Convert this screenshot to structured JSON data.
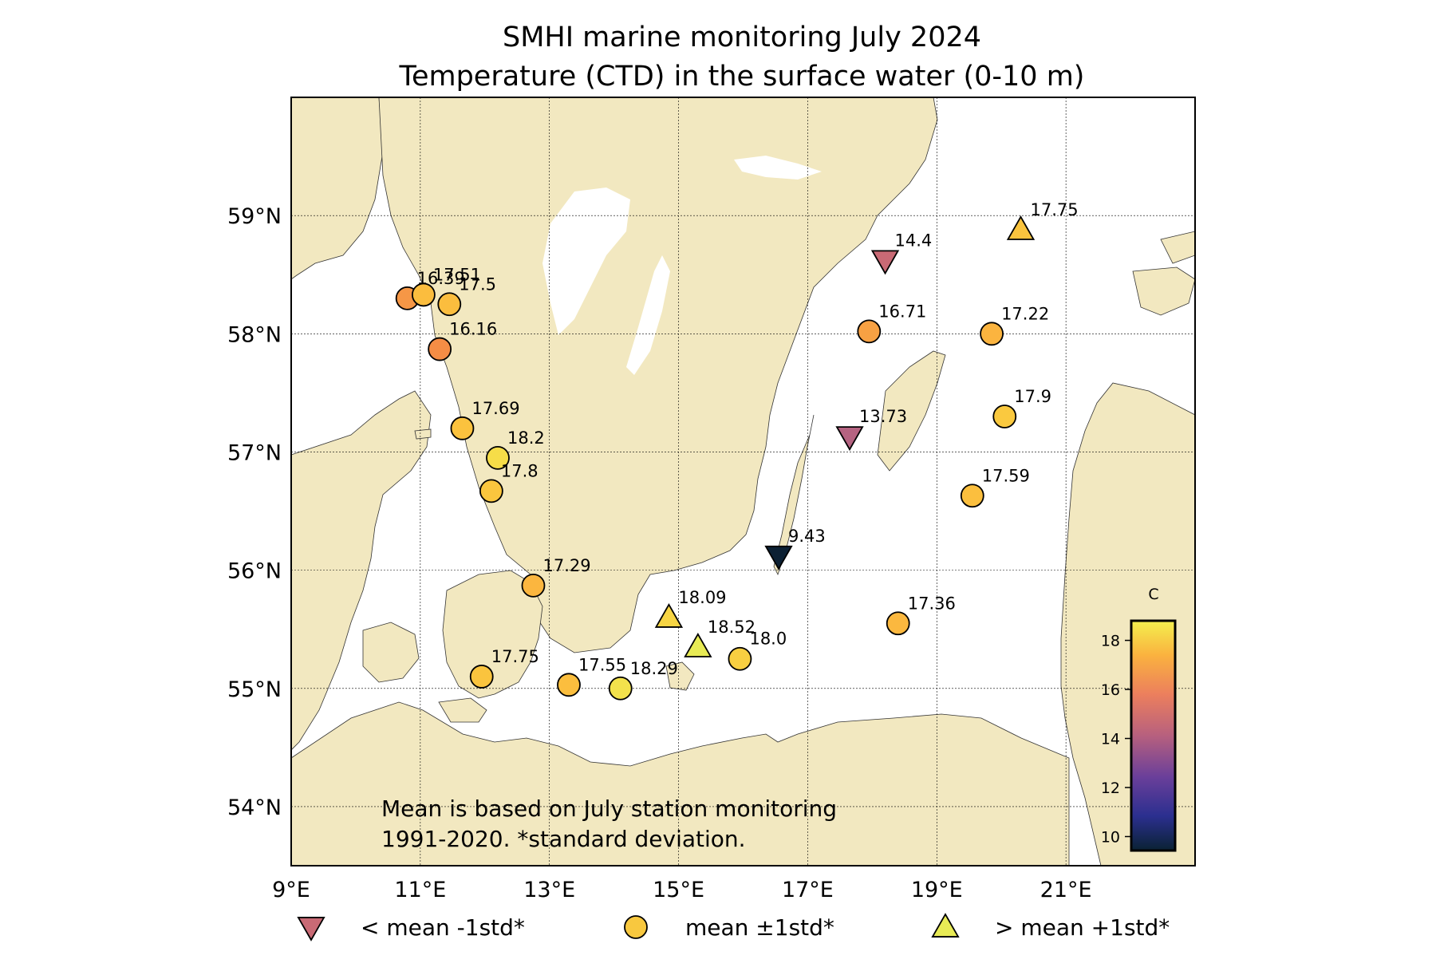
{
  "title": {
    "line1": "SMHI marine monitoring July 2024",
    "line2": "Temperature (CTD) in the surface water (0-10 m)"
  },
  "map": {
    "lon_range": [
      9,
      23
    ],
    "lat_range": [
      53.5,
      60
    ],
    "lon_ticks": [
      9,
      11,
      13,
      15,
      17,
      19,
      21
    ],
    "lat_ticks": [
      54,
      55,
      56,
      57,
      58,
      59
    ],
    "lon_tick_labels": [
      "9°E",
      "11°E",
      "13°E",
      "15°E",
      "17°E",
      "19°E",
      "21°E"
    ],
    "lat_tick_labels": [
      "54°N",
      "55°N",
      "56°N",
      "57°N",
      "58°N",
      "59°N"
    ],
    "land_color": "#f2e8c0",
    "sea_color": "#ffffff"
  },
  "stations": [
    {
      "value": 16.39,
      "label": "16.39",
      "category": "mean",
      "lon": 10.8,
      "lat": 58.3,
      "color": "#f69746"
    },
    {
      "value": 17.51,
      "label": "17.51",
      "category": "mean",
      "lon": 11.05,
      "lat": 58.33,
      "color": "#fbbd3e"
    },
    {
      "value": 17.5,
      "label": "17.5",
      "category": "mean",
      "lon": 11.45,
      "lat": 58.25,
      "color": "#fbbd3e"
    },
    {
      "value": 16.16,
      "label": "16.16",
      "category": "mean",
      "lon": 11.3,
      "lat": 57.87,
      "color": "#f58d45"
    },
    {
      "value": 17.69,
      "label": "17.69",
      "category": "mean",
      "lon": 11.65,
      "lat": 57.2,
      "color": "#fbc23e"
    },
    {
      "value": 18.2,
      "label": "18.2",
      "category": "mean",
      "lon": 12.2,
      "lat": 56.95,
      "color": "#f6dd48"
    },
    {
      "value": 17.8,
      "label": "17.8",
      "category": "mean",
      "lon": 12.1,
      "lat": 56.67,
      "color": "#fac63e"
    },
    {
      "value": 17.29,
      "label": "17.29",
      "category": "mean",
      "lon": 12.75,
      "lat": 55.87,
      "color": "#fbb63f"
    },
    {
      "value": 17.75,
      "label": "17.75",
      "category": "mean",
      "lon": 11.95,
      "lat": 55.1,
      "color": "#fac43e"
    },
    {
      "value": 17.55,
      "label": "17.55",
      "category": "mean",
      "lon": 13.3,
      "lat": 55.03,
      "color": "#fbbe3e"
    },
    {
      "value": 18.29,
      "label": "18.29",
      "category": "mean",
      "lon": 14.1,
      "lat": 55.0,
      "color": "#f3e24c"
    },
    {
      "value": 18.09,
      "label": "18.09",
      "category": "above",
      "lon": 14.85,
      "lat": 55.6,
      "color": "#f7d544"
    },
    {
      "value": 18.52,
      "label": "18.52",
      "category": "above",
      "lon": 15.3,
      "lat": 55.35,
      "color": "#e8eb55"
    },
    {
      "value": 18.0,
      "label": "18.0",
      "category": "mean",
      "lon": 15.95,
      "lat": 55.25,
      "color": "#f8cf41"
    },
    {
      "value": 9.43,
      "label": "9.43",
      "category": "below",
      "lon": 16.55,
      "lat": 56.12,
      "color": "#0c2033"
    },
    {
      "value": 13.73,
      "label": "13.73",
      "category": "below",
      "lon": 17.65,
      "lat": 57.13,
      "color": "#b56381"
    },
    {
      "value": 14.4,
      "label": "14.4",
      "category": "below",
      "lon": 18.2,
      "lat": 58.62,
      "color": "#c96a75"
    },
    {
      "value": 16.71,
      "label": "16.71",
      "category": "mean",
      "lon": 17.95,
      "lat": 58.02,
      "color": "#f7a143"
    },
    {
      "value": 17.22,
      "label": "17.22",
      "category": "mean",
      "lon": 19.85,
      "lat": 58.0,
      "color": "#fbb43f"
    },
    {
      "value": 17.75,
      "label": "17.75",
      "category": "above",
      "lon": 20.3,
      "lat": 58.88,
      "color": "#fac43e"
    },
    {
      "value": 17.9,
      "label": "17.9",
      "category": "mean",
      "lon": 20.05,
      "lat": 57.3,
      "color": "#fac93f"
    },
    {
      "value": 17.59,
      "label": "17.59",
      "category": "mean",
      "lon": 19.55,
      "lat": 56.63,
      "color": "#fbbf3e"
    },
    {
      "value": 17.36,
      "label": "17.36",
      "category": "mean",
      "lon": 18.4,
      "lat": 55.55,
      "color": "#fbb83f"
    }
  ],
  "note": {
    "line1": "Mean is based on July station monitoring",
    "line2": "1991-2020. *standard deviation."
  },
  "colorbar": {
    "title": "C",
    "min": 9.43,
    "max": 18.8,
    "ticks": [
      10,
      12,
      14,
      16,
      18
    ],
    "tick_labels": [
      "10",
      "12",
      "14",
      "16",
      "18"
    ]
  },
  "legend": [
    {
      "marker": "below",
      "label": "< mean -1std*",
      "color": "#c96a75"
    },
    {
      "marker": "mean",
      "label": "mean ±1std*",
      "color": "#f8c83f"
    },
    {
      "marker": "above",
      "label": "> mean +1std*",
      "color": "#e8eb55"
    }
  ]
}
